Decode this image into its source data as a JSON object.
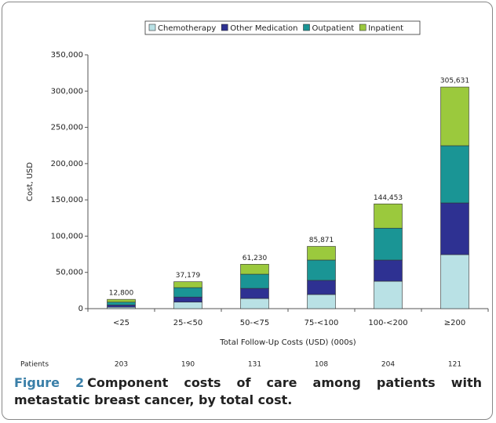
{
  "chart_data": {
    "type": "stacked_bar",
    "categories": [
      "<25",
      "25-<50",
      "50-<75",
      "75-<100",
      "100-<200",
      "≥200"
    ],
    "series": [
      {
        "name": "Chemotherapy",
        "color": "#b9e1e5",
        "values": [
          2000,
          9000,
          14000,
          19500,
          37800,
          74500
        ]
      },
      {
        "name": "Other Medication",
        "color": "#2e3192",
        "values": [
          3000,
          7000,
          14000,
          19500,
          29200,
          71300
        ]
      },
      {
        "name": "Outpatient",
        "color": "#1a9595",
        "values": [
          4000,
          13000,
          19500,
          28000,
          44000,
          78900
        ]
      },
      {
        "name": "Inpatient",
        "color": "#9bc93d",
        "values": [
          3800,
          8179,
          13730,
          18871,
          33453,
          80931
        ]
      }
    ],
    "totals": [
      {
        "value": 12800,
        "label": "12,800"
      },
      {
        "value": 37179,
        "label": "37,179"
      },
      {
        "value": 61230,
        "label": "61,230"
      },
      {
        "value": 85871,
        "label": "85,871"
      },
      {
        "value": 144453,
        "label": "144,453"
      },
      {
        "value": 305631,
        "label": "305,631"
      }
    ],
    "ylim": [
      0,
      350000
    ],
    "yticks": [
      0,
      {
        "value": 50000,
        "label": "50,000"
      },
      {
        "value": 100000,
        "label": "100,000"
      },
      {
        "value": 150000,
        "label": "150,000"
      },
      {
        "value": 200000,
        "label": "200,000"
      },
      {
        "value": 250000,
        "label": "250,000"
      },
      {
        "value": 300000,
        "label": "300,000"
      },
      {
        "value": 350000,
        "label": "350,000"
      }
    ],
    "ylabel": "Cost, USD",
    "xlabel": "Total Follow-Up Costs (USD) (000s)",
    "legend": "top",
    "patients": {
      "label": "Patients",
      "values": [
        203,
        190,
        131,
        108,
        204,
        121
      ]
    },
    "caption_label": "Figure 2",
    "caption": "Component costs of care among patients with metastatic breast cancer, by total cost."
  }
}
